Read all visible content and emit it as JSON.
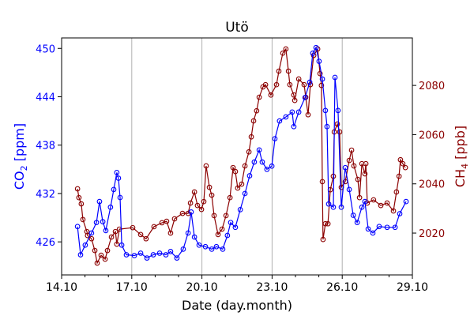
{
  "chart_data": {
    "type": "line",
    "title": "Utö",
    "xlabel": "Date (day.month)",
    "ylabel_left": "CO2 [ppm]",
    "ylabel_left_main": "CO",
    "ylabel_left_sub": "2",
    "ylabel_left_unit": " [ppm]",
    "ylabel_right": "CH4 [ppb]",
    "ylabel_right_main": "CH",
    "ylabel_right_sub": "4",
    "ylabel_right_unit": " [ppb]",
    "x_unit": "days since 14.10",
    "xlim": [
      0,
      15
    ],
    "xticks": [
      0,
      3,
      6,
      9,
      12,
      15
    ],
    "xtick_labels": [
      "14.10",
      "17.10",
      "20.10",
      "23.10",
      "26.10",
      "29.10"
    ],
    "x_minor_step": 1,
    "ylim_left": [
      421.9,
      451.3
    ],
    "yticks_left": [
      426,
      432,
      438,
      444,
      450
    ],
    "ylim_right": [
      2003,
      2099.3
    ],
    "yticks_right": [
      2020,
      2040,
      2060,
      2080
    ],
    "grid": "vertical major",
    "colors": {
      "co2": "#0000ff",
      "ch4": "#8b0000",
      "grid": "#b0b0b0"
    },
    "series": [
      {
        "name": "CO2",
        "axis": "left",
        "x": [
          0.68,
          0.81,
          1.01,
          1.28,
          1.49,
          1.62,
          1.76,
          1.89,
          2.09,
          2.23,
          2.36,
          2.43,
          2.5,
          2.57,
          2.77,
          3.11,
          3.38,
          3.65,
          3.92,
          4.19,
          4.46,
          4.66,
          4.93,
          5.2,
          5.41,
          5.54,
          5.68,
          5.88,
          6.15,
          6.42,
          6.62,
          6.89,
          7.09,
          7.23,
          7.43,
          7.64,
          7.84,
          8.04,
          8.24,
          8.45,
          8.58,
          8.78,
          8.99,
          9.12,
          9.32,
          9.59,
          9.86,
          9.93,
          10.14,
          10.41,
          10.61,
          10.74,
          10.88,
          11.01,
          11.15,
          11.28,
          11.35,
          11.42,
          11.62,
          11.69,
          11.82,
          11.96,
          12.13,
          12.3,
          12.47,
          12.64,
          12.84,
          12.97,
          13.11,
          13.31,
          13.58,
          13.92,
          14.26,
          14.46,
          14.73
        ],
        "y": [
          427.9,
          424.4,
          425.6,
          427.1,
          428.4,
          431.0,
          428.5,
          427.4,
          430.3,
          432.5,
          434.6,
          433.9,
          431.5,
          425.6,
          424.4,
          424.3,
          424.6,
          424.0,
          424.4,
          424.6,
          424.4,
          424.8,
          424.0,
          425.1,
          427.1,
          429.7,
          426.6,
          425.6,
          425.4,
          425.1,
          425.4,
          425.1,
          426.8,
          428.4,
          427.8,
          430.0,
          432.0,
          434.2,
          435.9,
          437.4,
          435.9,
          435.0,
          435.4,
          438.8,
          441.0,
          441.5,
          442.1,
          440.3,
          442.1,
          443.9,
          445.8,
          449.4,
          450.1,
          448.4,
          446.2,
          442.3,
          440.3,
          430.7,
          430.3,
          446.4,
          442.3,
          430.3,
          435.2,
          432.5,
          429.3,
          428.4,
          430.3,
          431.0,
          427.6,
          427.1,
          427.9,
          427.8,
          427.8,
          429.5,
          431.0
        ]
      },
      {
        "name": "CH4",
        "axis": "right",
        "x": [
          0.68,
          0.74,
          0.84,
          0.91,
          1.08,
          1.11,
          1.28,
          1.42,
          1.52,
          1.69,
          1.86,
          1.96,
          2.13,
          2.3,
          2.36,
          2.47,
          3.04,
          3.38,
          3.61,
          3.95,
          4.29,
          4.49,
          4.66,
          4.83,
          5.17,
          5.41,
          5.51,
          5.68,
          5.81,
          5.98,
          6.08,
          6.18,
          6.32,
          6.42,
          6.52,
          6.69,
          6.86,
          7.03,
          7.2,
          7.33,
          7.43,
          7.53,
          7.7,
          7.84,
          8.01,
          8.11,
          8.21,
          8.34,
          8.45,
          8.61,
          8.72,
          8.95,
          9.19,
          9.29,
          9.46,
          9.59,
          9.7,
          9.76,
          9.93,
          9.97,
          10.14,
          10.37,
          10.44,
          10.54,
          10.64,
          10.78,
          10.95,
          11.05,
          11.11,
          11.15,
          11.18,
          11.28,
          11.39,
          11.49,
          11.62,
          11.66,
          11.79,
          11.89,
          11.96,
          12.13,
          12.3,
          12.4,
          12.5,
          12.67,
          12.74,
          12.84,
          12.97,
          13.01,
          13.07,
          13.34,
          13.65,
          13.92,
          14.19,
          14.32,
          14.43,
          14.49,
          14.59,
          14.7
        ],
        "y": [
          2038.0,
          2034.4,
          2031.9,
          2025.5,
          2020.6,
          2019.0,
          2017.7,
          2012.9,
          2007.8,
          2011.0,
          2009.4,
          2012.9,
          2018.4,
          2020.6,
          2015.5,
          2021.6,
          2022.2,
          2019.4,
          2017.7,
          2022.6,
          2024.2,
          2024.8,
          2020.0,
          2025.8,
          2028.0,
          2028.0,
          2032.2,
          2036.7,
          2031.2,
          2029.6,
          2032.8,
          2047.3,
          2038.6,
          2035.4,
          2027.1,
          2019.4,
          2021.6,
          2027.1,
          2034.4,
          2046.6,
          2045.0,
          2038.3,
          2039.9,
          2047.3,
          2053.0,
          2059.1,
          2065.6,
          2069.7,
          2075.2,
          2079.4,
          2080.3,
          2076.1,
          2080.3,
          2085.8,
          2093.1,
          2094.8,
          2085.8,
          2080.3,
          2076.1,
          2073.9,
          2082.6,
          2080.3,
          2075.2,
          2068.1,
          2080.3,
          2092.2,
          2094.8,
          2084.8,
          2080.0,
          2040.9,
          2017.4,
          2023.8,
          2023.8,
          2037.6,
          2043.1,
          2061.1,
          2064.3,
          2061.1,
          2038.6,
          2040.9,
          2049.5,
          2053.7,
          2047.3,
          2041.8,
          2034.4,
          2048.2,
          2044.1,
          2048.2,
          2032.2,
          2033.5,
          2031.2,
          2032.2,
          2029.0,
          2036.7,
          2043.1,
          2049.8,
          2048.2,
          2046.6
        ]
      }
    ]
  }
}
